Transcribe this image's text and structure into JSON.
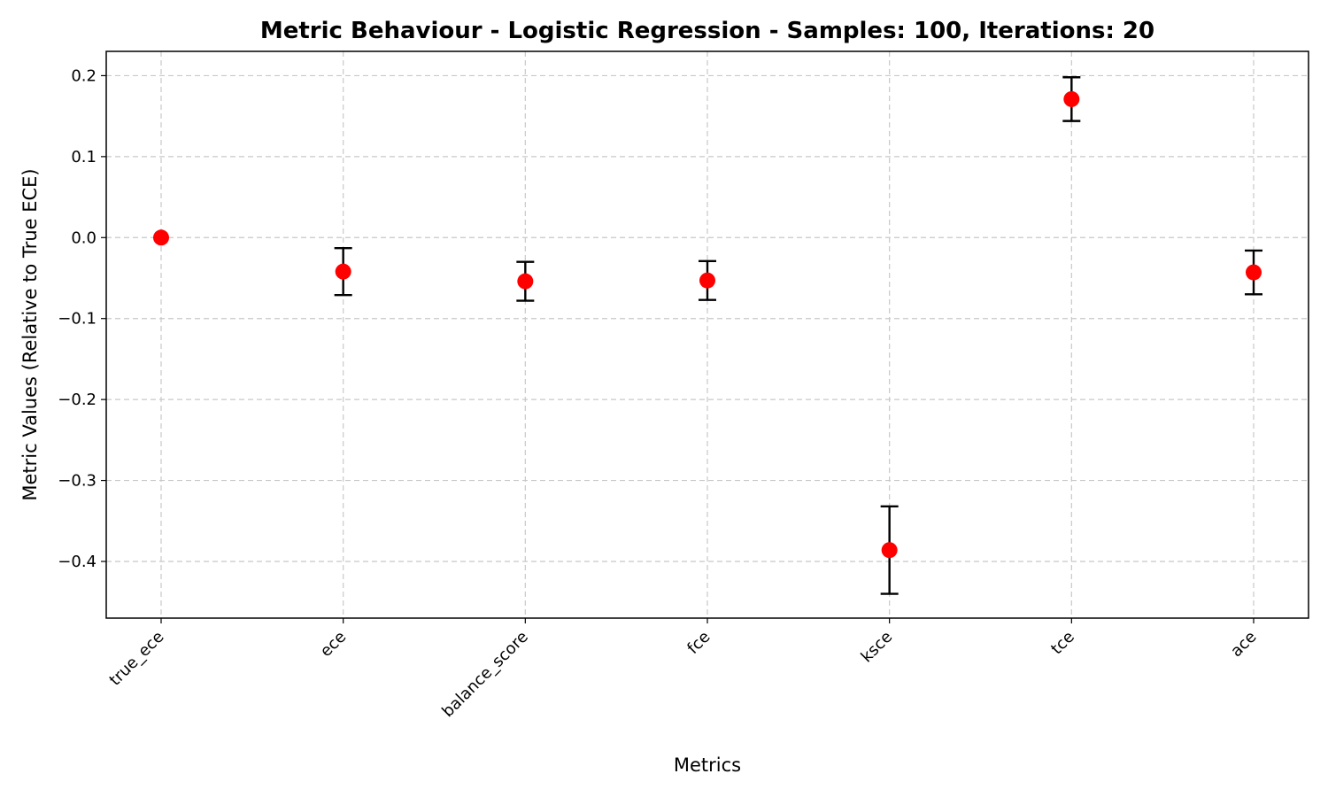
{
  "chart_data": {
    "type": "scatter",
    "title": "Metric Behaviour - Logistic Regression - Samples: 100, Iterations: 20",
    "xlabel": "Metrics",
    "ylabel": "Metric Values (Relative to True ECE)",
    "categories": [
      "true_ece",
      "ece",
      "balance_score",
      "fce",
      "ksce",
      "tce",
      "ace"
    ],
    "values": [
      0.0,
      -0.042,
      -0.054,
      -0.053,
      -0.386,
      0.171,
      -0.043
    ],
    "error": [
      0.0,
      0.029,
      0.024,
      0.024,
      0.054,
      0.027,
      0.027
    ],
    "ylim": [
      -0.47,
      0.23
    ],
    "yticks": [
      -0.4,
      -0.3,
      -0.2,
      -0.1,
      0.0,
      0.1,
      0.2
    ],
    "ytick_labels": [
      "−0.4",
      "−0.3",
      "−0.2",
      "−0.1",
      "0.0",
      "0.1",
      "0.2"
    ],
    "grid": true,
    "marker_color": "#ff0000",
    "errorbar_color": "#000000"
  }
}
